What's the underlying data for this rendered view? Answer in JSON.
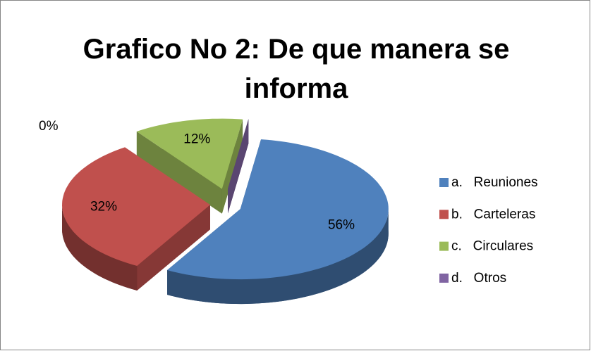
{
  "chart_data": {
    "type": "pie",
    "title": "Grafico No 2: De que manera se informa",
    "categories": [
      "a.   Reuniones",
      "b.   Carteleras",
      "c.   Circulares",
      "d.   Otros"
    ],
    "values": [
      56,
      32,
      12,
      0
    ],
    "value_labels": [
      "56%",
      "32%",
      "12%",
      "0%"
    ],
    "colors": [
      "#4f81bd",
      "#c0504d",
      "#9bbb59",
      "#8064a2"
    ],
    "legend": "right"
  }
}
